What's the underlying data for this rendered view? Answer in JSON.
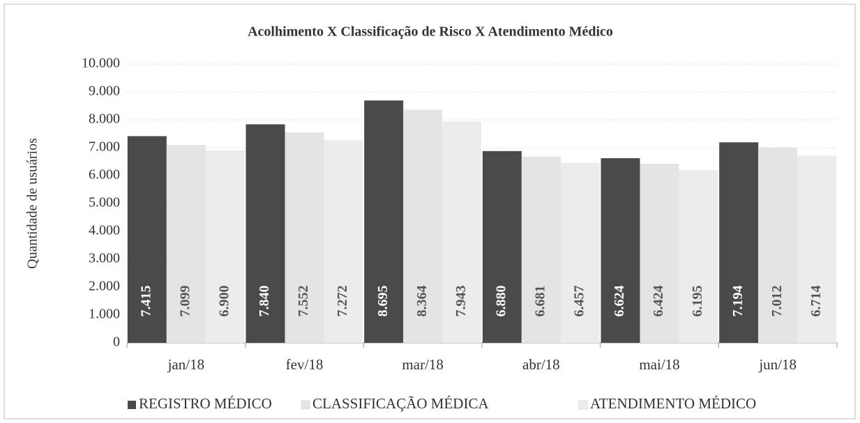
{
  "chart_data": {
    "type": "bar",
    "title": "Acolhimento X Classificação de Risco X Atendimento Médico",
    "ylabel": "Quantidade de usuários",
    "categories": [
      "jan/18",
      "fev/18",
      "mar/18",
      "abr/18",
      "mai/18",
      "jun/18"
    ],
    "series": [
      {
        "name": "REGISTRO MÉDICO",
        "color": "#4a4a4a",
        "values": [
          7415,
          7840,
          8695,
          6880,
          6624,
          7194
        ],
        "value_labels": [
          "7.415",
          "7.840",
          "8.695",
          "6.880",
          "6.624",
          "7.194"
        ]
      },
      {
        "name": "CLASSIFICAÇÃO MÉDICA",
        "color": "#e4e4e4",
        "values": [
          7099,
          7552,
          8364,
          6681,
          6424,
          7012
        ],
        "value_labels": [
          "7.099",
          "7.552",
          "8.364",
          "6.681",
          "6.424",
          "7.012"
        ]
      },
      {
        "name": "ATENDIMENTO MÉDICO",
        "color": "#ececec",
        "values": [
          6900,
          7272,
          7943,
          6457,
          6195,
          6714
        ],
        "value_labels": [
          "6.900",
          "7.272",
          "7.943",
          "6.457",
          "6.195",
          "6.714"
        ]
      }
    ],
    "ylim": [
      0,
      10000
    ],
    "yticks": [
      0,
      {
        "value": 1000,
        "label": "1.000"
      },
      {
        "value": 2000,
        "label": "2.000"
      },
      {
        "value": 3000,
        "label": "3.000"
      },
      {
        "value": 4000,
        "label": "4.000"
      },
      {
        "value": 5000,
        "label": "5.000"
      },
      {
        "value": 6000,
        "label": "6.000"
      },
      {
        "value": 7000,
        "label": "7.000"
      },
      {
        "value": 8000,
        "label": "8.000"
      },
      {
        "value": 9000,
        "label": "9.000"
      },
      {
        "value": 10000,
        "label": "10.000"
      }
    ],
    "grid": true,
    "legend": "bottom"
  }
}
